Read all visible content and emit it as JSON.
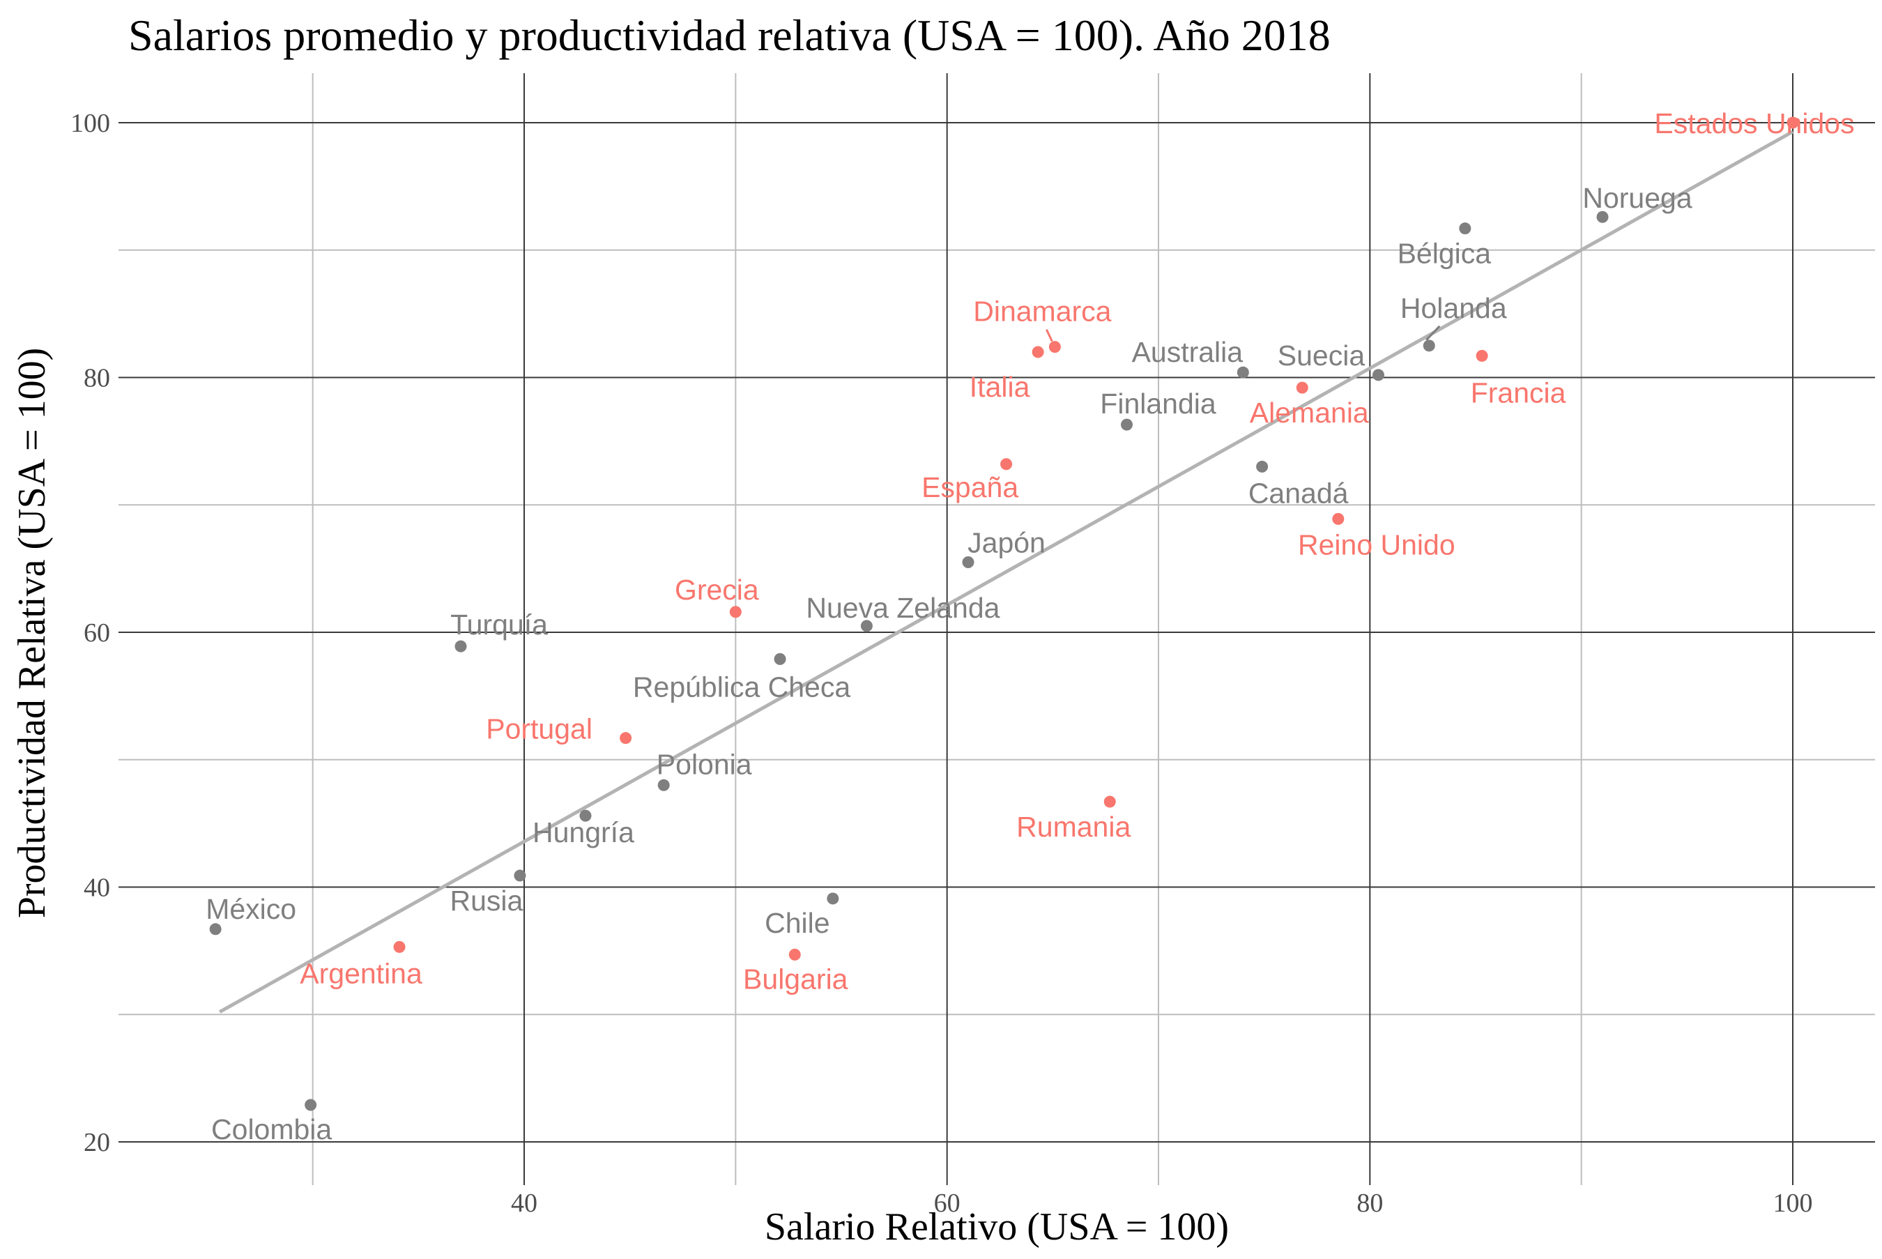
{
  "chart_data": {
    "type": "scatter",
    "title": "Salarios promedio y productividad relativa (USA = 100). Año 2018",
    "xlabel": "Salario Relativo (USA = 100)",
    "ylabel": "Productividad Relativa (USA = 100)",
    "xlim": [
      21.5,
      103.8
    ],
    "ylim": [
      18.3,
      103.9
    ],
    "x_ticks": [
      40,
      60,
      80,
      100
    ],
    "y_ticks": [
      20,
      40,
      60,
      80,
      100
    ],
    "grid": true,
    "colors": {
      "highlight": "#f8766d",
      "default": "#7f7f7f",
      "trend": "#b3b3b3"
    },
    "trend_line": {
      "x": [
        25.6,
        100
      ],
      "y": [
        30.2,
        99.3
      ]
    },
    "points": [
      {
        "name": "Estados Unidos",
        "x": 100,
        "y": 100,
        "highlight": true
      },
      {
        "name": "Noruega",
        "x": 91.0,
        "y": 92.6,
        "highlight": false
      },
      {
        "name": "Bélgica",
        "x": 84.5,
        "y": 91.7,
        "highlight": false
      },
      {
        "name": "Holanda",
        "x": 82.8,
        "y": 82.5,
        "highlight": false
      },
      {
        "name": "Francia",
        "x": 85.3,
        "y": 81.7,
        "highlight": true
      },
      {
        "name": "Suecia",
        "x": 80.4,
        "y": 80.2,
        "highlight": false
      },
      {
        "name": "Dinamarca",
        "x": 65.1,
        "y": 82.4,
        "highlight": true
      },
      {
        "name": "Italia",
        "x": 64.3,
        "y": 82.0,
        "highlight": true
      },
      {
        "name": "Australia",
        "x": 74.0,
        "y": 80.4,
        "highlight": false
      },
      {
        "name": "Alemania",
        "x": 76.8,
        "y": 79.2,
        "highlight": true
      },
      {
        "name": "Finlandia",
        "x": 68.5,
        "y": 76.3,
        "highlight": false
      },
      {
        "name": "España",
        "x": 62.8,
        "y": 73.2,
        "highlight": true
      },
      {
        "name": "Canadá",
        "x": 74.9,
        "y": 73.0,
        "highlight": false
      },
      {
        "name": "Reino Unido",
        "x": 78.5,
        "y": 68.9,
        "highlight": true
      },
      {
        "name": "Japón",
        "x": 61.0,
        "y": 65.5,
        "highlight": false
      },
      {
        "name": "Grecia",
        "x": 50.0,
        "y": 61.6,
        "highlight": true
      },
      {
        "name": "Nueva Zelanda",
        "x": 56.2,
        "y": 60.5,
        "highlight": false
      },
      {
        "name": "Turquía",
        "x": 37.0,
        "y": 58.9,
        "highlight": false
      },
      {
        "name": "República Checa",
        "x": 52.1,
        "y": 57.9,
        "highlight": false
      },
      {
        "name": "Portugal",
        "x": 44.8,
        "y": 51.7,
        "highlight": true
      },
      {
        "name": "Polonia",
        "x": 46.6,
        "y": 48.0,
        "highlight": false
      },
      {
        "name": "Rumania",
        "x": 67.7,
        "y": 46.7,
        "highlight": true
      },
      {
        "name": "Hungría",
        "x": 42.9,
        "y": 45.6,
        "highlight": false
      },
      {
        "name": "Rusia",
        "x": 39.8,
        "y": 40.9,
        "highlight": false
      },
      {
        "name": "Chile",
        "x": 54.6,
        "y": 39.1,
        "highlight": false
      },
      {
        "name": "México",
        "x": 25.4,
        "y": 36.7,
        "highlight": false
      },
      {
        "name": "Argentina",
        "x": 34.1,
        "y": 35.3,
        "highlight": true
      },
      {
        "name": "Bulgaria",
        "x": 52.8,
        "y": 34.7,
        "highlight": true
      },
      {
        "name": "Colombia",
        "x": 29.9,
        "y": 22.9,
        "highlight": false
      }
    ]
  }
}
